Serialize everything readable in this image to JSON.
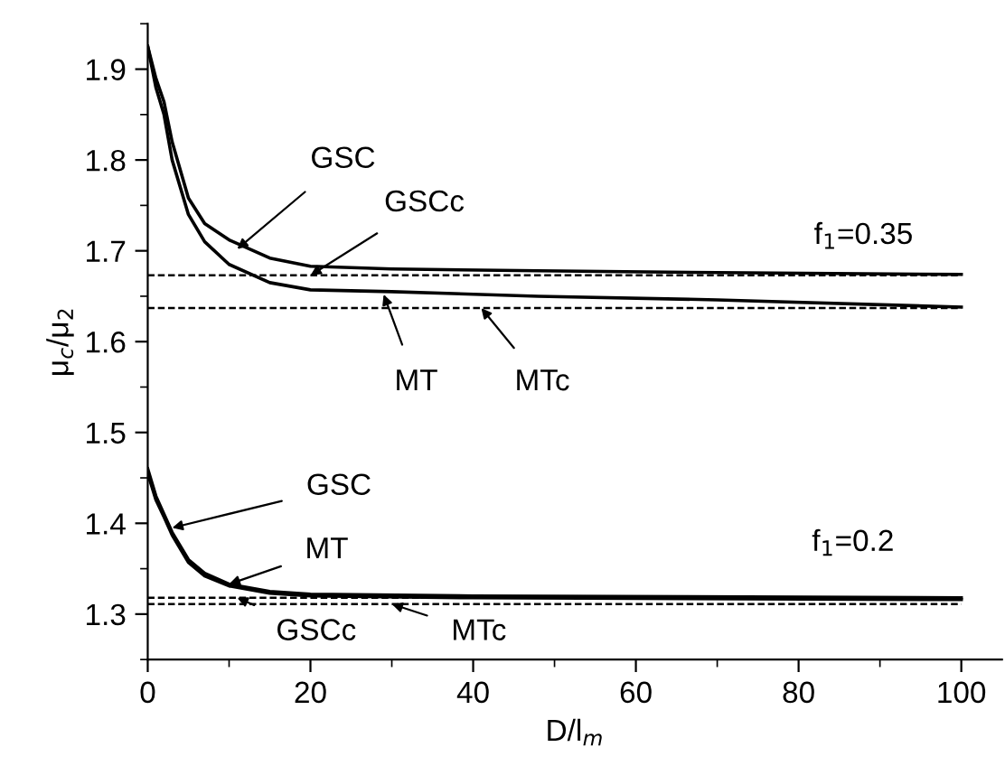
{
  "chart_data": {
    "type": "line",
    "xlabel": "D/l$_{m}$",
    "ylabel": "μ$_{c}$/μ$_{2}$",
    "xlim": [
      0,
      105
    ],
    "ylim": [
      1.25,
      1.95
    ],
    "xticks": [
      0,
      20,
      40,
      60,
      80,
      100
    ],
    "yticks": [
      1.3,
      1.4,
      1.5,
      1.6,
      1.7,
      1.8,
      1.9
    ],
    "grid": false,
    "marker": "none",
    "series": [
      {
        "color": "#000000",
        "line_style": "solid",
        "x": [
          0,
          1,
          2,
          3,
          5,
          7,
          10,
          15,
          20,
          30,
          48,
          70,
          100
        ],
        "values": [
          1.925,
          1.89,
          1.864,
          1.82,
          1.758,
          1.73,
          1.712,
          1.692,
          1.683,
          1.68,
          1.678,
          1.676,
          1.674
        ]
      },
      {
        "color": "#000000",
        "line_style": "solid",
        "x": [
          0,
          1,
          2,
          3,
          5,
          7,
          10,
          15,
          20,
          30,
          48,
          70,
          100
        ],
        "values": [
          1.925,
          1.88,
          1.85,
          1.8,
          1.74,
          1.71,
          1.685,
          1.665,
          1.657,
          1.655,
          1.65,
          1.646,
          1.638
        ]
      },
      {
        "color": "#000000",
        "line_style": "dashed",
        "x": [
          0,
          100
        ],
        "values": [
          1.673,
          1.673
        ]
      },
      {
        "color": "#000000",
        "line_style": "dashed",
        "x": [
          0,
          100
        ],
        "values": [
          1.637,
          1.637
        ]
      },
      {
        "color": "#000000",
        "line_style": "solid",
        "x": [
          0,
          1,
          2,
          3,
          5,
          7,
          10,
          15,
          20,
          40,
          100
        ],
        "values": [
          1.46,
          1.43,
          1.41,
          1.39,
          1.36,
          1.345,
          1.333,
          1.325,
          1.322,
          1.32,
          1.318
        ]
      },
      {
        "color": "#000000",
        "line_style": "solid",
        "x": [
          0,
          1,
          2,
          3,
          5,
          7,
          10,
          15,
          20,
          40,
          100
        ],
        "values": [
          1.455,
          1.426,
          1.407,
          1.387,
          1.357,
          1.342,
          1.331,
          1.323,
          1.32,
          1.318,
          1.316
        ]
      },
      {
        "color": "#000000",
        "line_style": "dashed",
        "x": [
          0,
          100
        ],
        "values": [
          1.318,
          1.318
        ]
      },
      {
        "color": "#000000",
        "line_style": "dashed",
        "x": [
          0,
          100
        ],
        "values": [
          1.311,
          1.311
        ]
      }
    ],
    "annotations": [
      {
        "text": "GSC",
        "x": 11,
        "y": 1.702
      },
      {
        "text": "GSCc",
        "x": 20,
        "y": 1.673
      },
      {
        "text": "MT",
        "x": 29,
        "y": 1.652
      },
      {
        "text": "MTc",
        "x": 41,
        "y": 1.637
      },
      "f$_{1}$=0.35",
      {
        "text": "GSC",
        "x": 3,
        "y": 1.395
      },
      {
        "text": "MT",
        "x": 10,
        "y": 1.333
      },
      {
        "text": "GSCc",
        "x": 11,
        "y": 1.318
      },
      {
        "text": "MTc",
        "x": 30,
        "y": 1.311
      },
      "f$_{1}$=0.2"
    ]
  }
}
